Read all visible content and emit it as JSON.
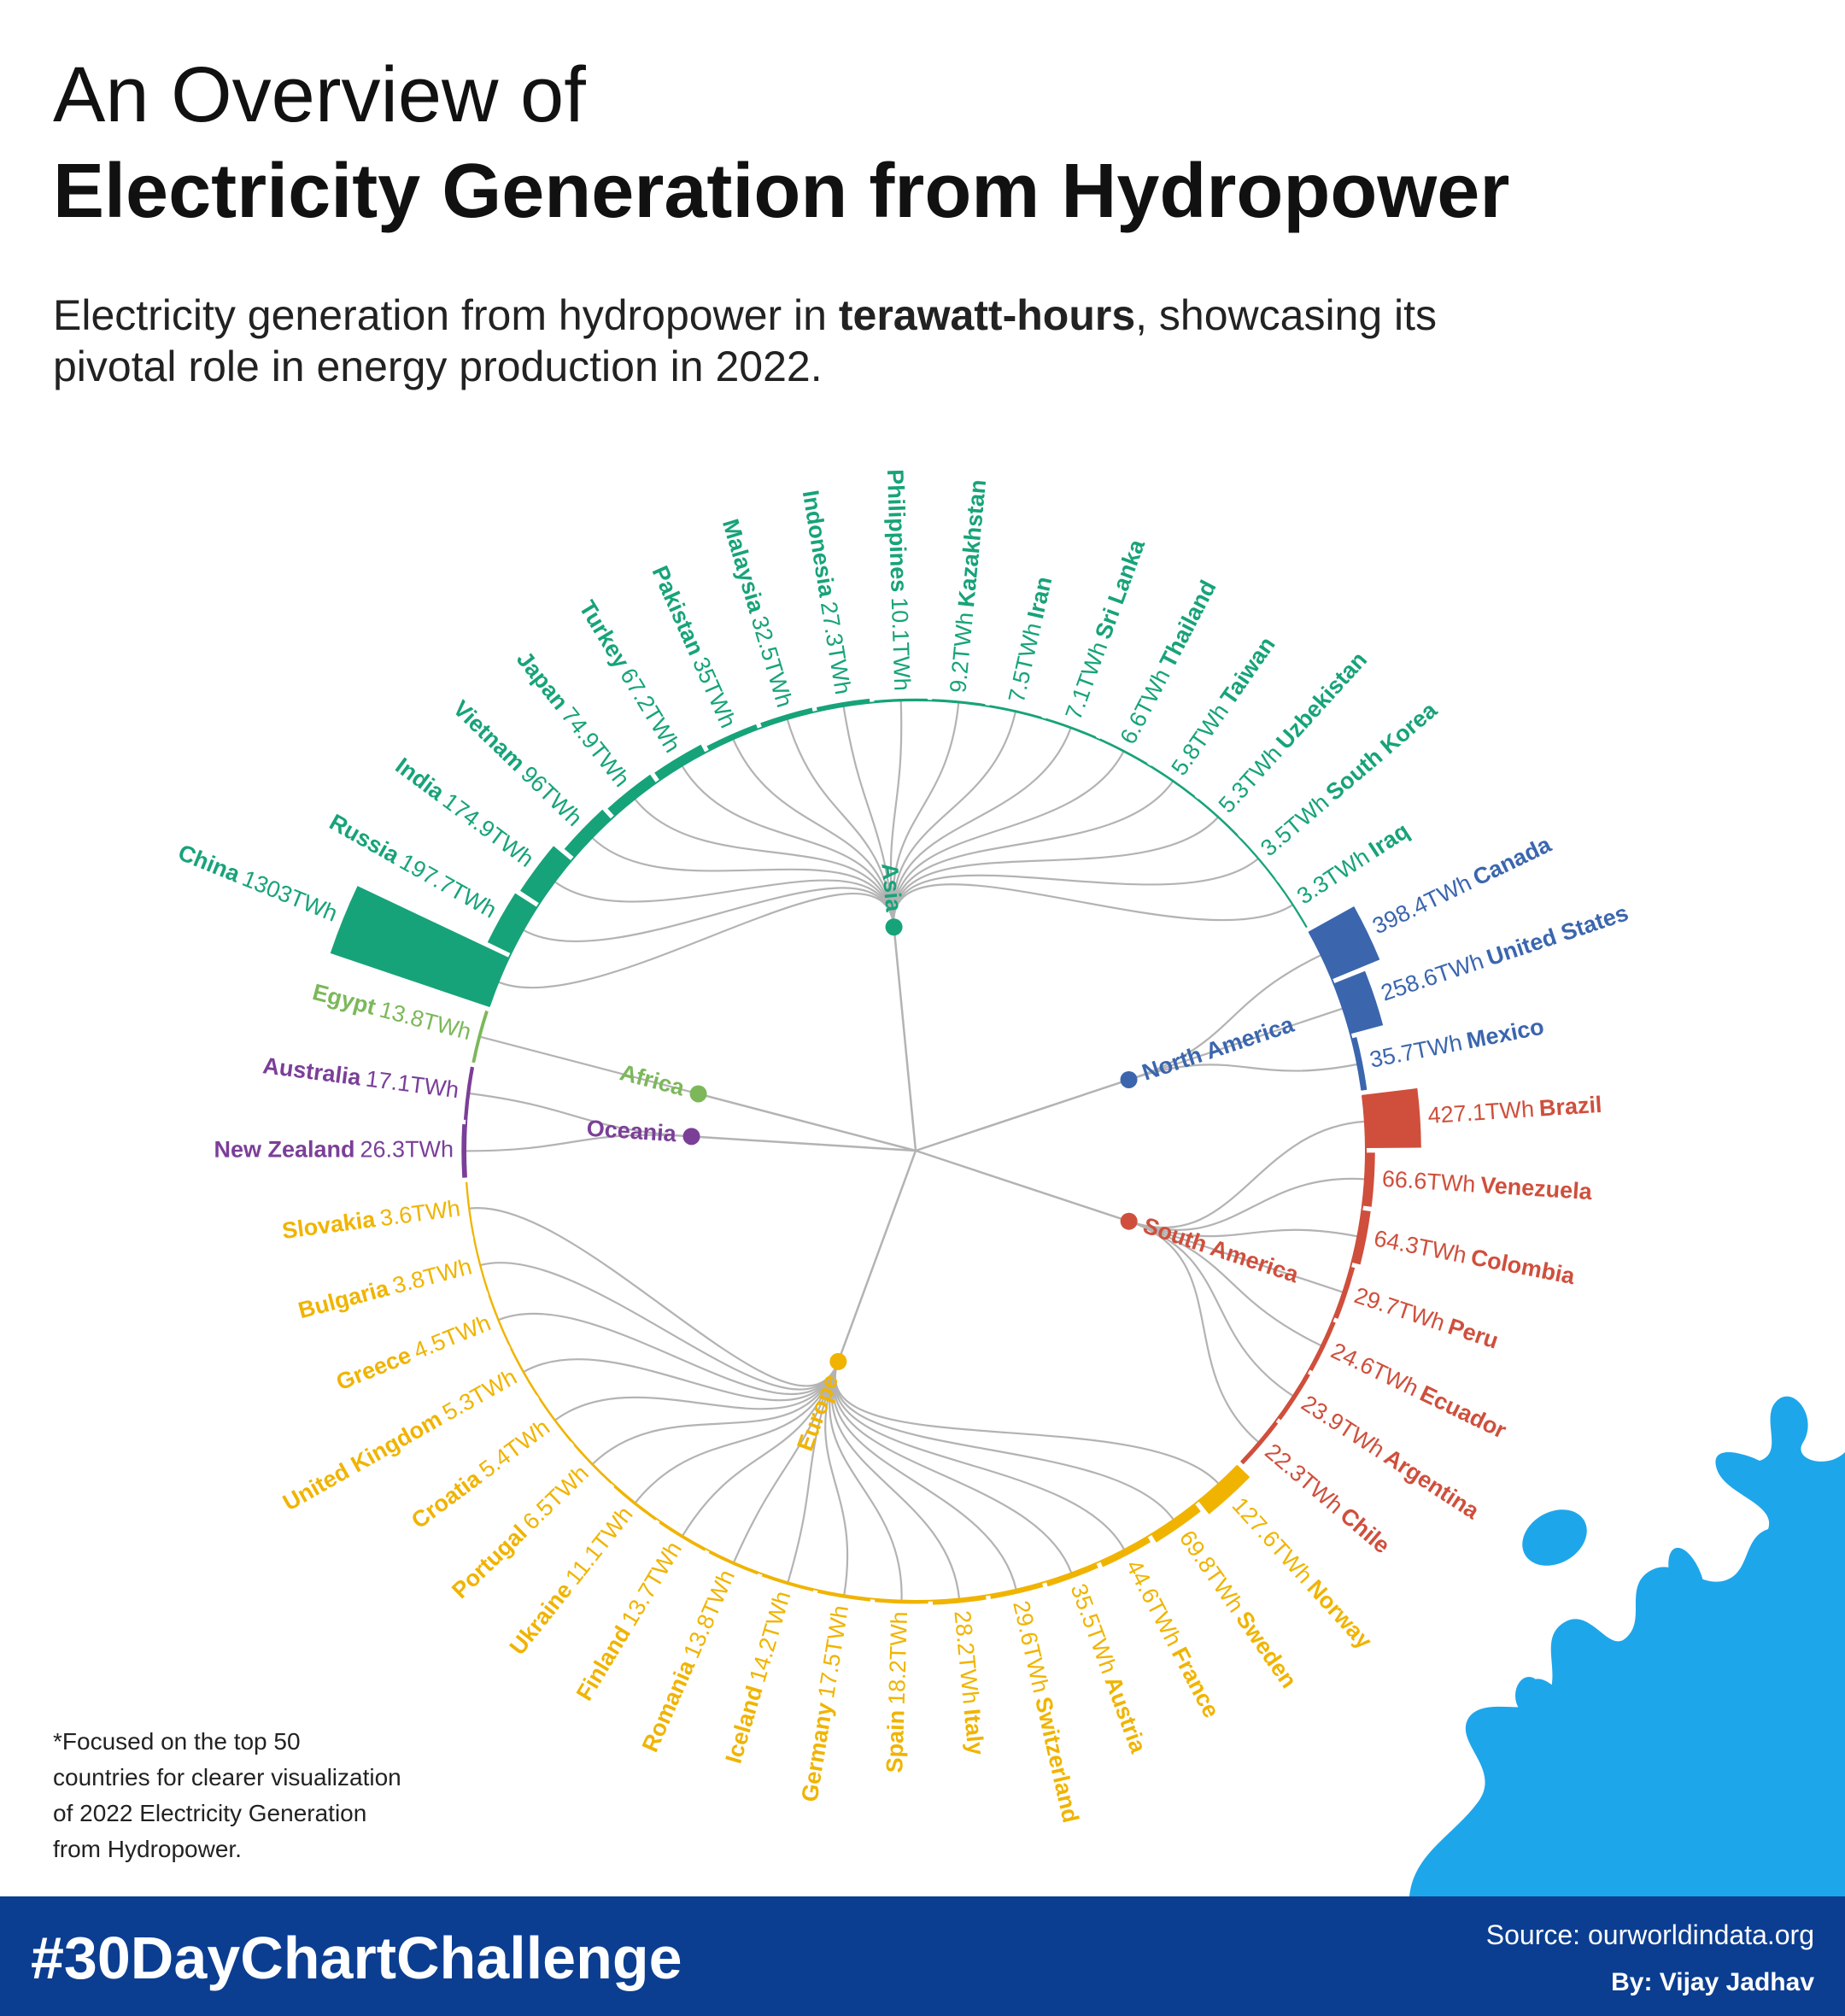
{
  "chart_data": {
    "type": "radial-dendrogram-bar",
    "title": "An Overview of",
    "title_bold": "Electricity Generation from Hydropower",
    "subtitle": [
      "Electricity generation from hydropower in ",
      "terawatt-hours",
      ", showcasing its",
      "pivotal role in energy production in 2022."
    ],
    "footnote": [
      "*Focused on the top 50",
      "countries for clearer visualization",
      "of 2022 Electricity Generation",
      "from Hydropower."
    ],
    "footer": {
      "hashtag": "#30DayChartChallenge",
      "source": "Source: ourworldindata.org",
      "author": "By: Vijay Jadhav"
    },
    "series": [
      {
        "name": "Asia",
        "color": "#17a379",
        "categories": [
          "China",
          "Russia",
          "India",
          "Vietnam",
          "Japan",
          "Turkey",
          "Pakistan",
          "Malaysia",
          "Indonesia",
          "Philippines",
          "Kazakhstan",
          "Iran",
          "Sri Lanka",
          "Thailand",
          "Taiwan",
          "Uzbekistan",
          "South Korea",
          "Iraq"
        ],
        "values": [
          1303,
          197.7,
          174.9,
          96,
          74.9,
          67.2,
          35,
          32.5,
          27.3,
          10.1,
          9.2,
          7.5,
          7.1,
          6.6,
          5.8,
          5.3,
          3.5,
          3.3
        ],
        "value_labels": [
          "1303TWh",
          "197.7TWh",
          "174.9TWh",
          "96TWh",
          "74.9TWh",
          "67.2TWh",
          "35TWh",
          "32.5TWh",
          "27.3TWh",
          "10.1TWh",
          "9.2TWh",
          "7.5TWh",
          "7.1TWh",
          "6.6TWh",
          "5.8TWh",
          "5.3TWh",
          "3.5TWh",
          "3.3TWh"
        ]
      },
      {
        "name": "North America",
        "color": "#3b66ae",
        "categories": [
          "Canada",
          "United States",
          "Mexico"
        ],
        "values": [
          398.4,
          258.6,
          35.7
        ],
        "value_labels": [
          "398.4TWh",
          "258.6TWh",
          "35.7TWh"
        ]
      },
      {
        "name": "South America",
        "color": "#cf4f3c",
        "categories": [
          "Brazil",
          "Venezuela",
          "Colombia",
          "Peru",
          "Ecuador",
          "Argentina",
          "Chile"
        ],
        "values": [
          427.1,
          66.6,
          64.3,
          29.7,
          24.6,
          23.9,
          22.3
        ],
        "value_labels": [
          "427.1TWh",
          "66.6TWh",
          "64.3TWh",
          "29.7TWh",
          "24.6TWh",
          "23.9TWh",
          "22.3TWh"
        ]
      },
      {
        "name": "Europe",
        "color": "#f0b400",
        "categories": [
          "Norway",
          "Sweden",
          "France",
          "Austria",
          "Switzerland",
          "Italy",
          "Spain",
          "Germany",
          "Iceland",
          "Romania",
          "Finland",
          "Ukraine",
          "Portugal",
          "Croatia",
          "United Kingdom",
          "Greece",
          "Bulgaria",
          "Slovakia"
        ],
        "values": [
          127.6,
          69.8,
          44.6,
          35.5,
          29.6,
          28.2,
          18.2,
          17.5,
          14.2,
          13.8,
          13.7,
          11.1,
          6.5,
          5.4,
          5.3,
          4.5,
          3.8,
          3.6
        ],
        "value_labels": [
          "127.6TWh",
          "69.8TWh",
          "44.6TWh",
          "35.5TWh",
          "29.6TWh",
          "28.2TWh",
          "18.2TWh",
          "17.5TWh",
          "14.2TWh",
          "13.8TWh",
          "13.7TWh",
          "11.1TWh",
          "6.5TWh",
          "5.4TWh",
          "5.3TWh",
          "4.5TWh",
          "3.8TWh",
          "3.6TWh"
        ]
      },
      {
        "name": "Oceania",
        "color": "#7b3f98",
        "categories": [
          "New Zealand",
          "Australia"
        ],
        "values": [
          26.3,
          17.1
        ],
        "value_labels": [
          "26.3TWh",
          "17.1TWh"
        ]
      },
      {
        "name": "Africa",
        "color": "#7cb85a",
        "categories": [
          "Egypt"
        ],
        "values": [
          13.8
        ],
        "value_labels": [
          "13.8TWh"
        ]
      }
    ]
  }
}
